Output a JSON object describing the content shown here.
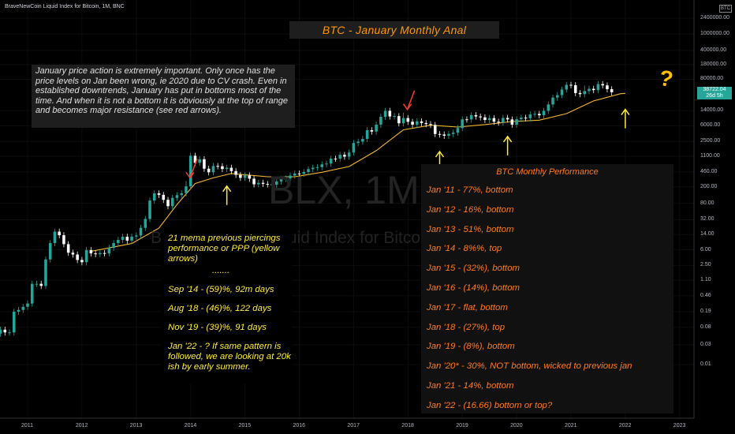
{
  "symbol_line": "BraveNewCoin Liquid Index for Bitcoin, 1M, BNC",
  "title": "BTC - January Monthly Anal",
  "note": "January price action is extremely important. Only once has the price levels on Jan been wrong, ie 2020 due to CV crash. Even in established downtrends, January has put in bottoms most of the time. And when it is not a bottom it is obviously at the top of range and becomes major resistance (see red arrows).",
  "watermark": {
    "big": "BLX, 1M",
    "small": "BraveNewCoin Liquid Index for Bitcoin"
  },
  "ppp": {
    "heading": "21 mema previous piercings performance or PPP (yellow arrows)",
    "dots": ".......",
    "items": [
      "Sep '14 - (59)%, 92m days",
      "Aug '18 - (46)%, 122 days",
      "Nov '19 - (39)%, 91 days"
    ],
    "closing": "Jan '22 - ? If same pattern is followed, we are looking at 20k ish by early summer."
  },
  "performance": {
    "title": "BTC Monthly Performance",
    "items": [
      "Jan '11 - 77%, bottom",
      "Jan '12 - 16%, bottom",
      "Jan '13 - 51%, bottom",
      "Jan '14 - 8%%, top",
      "Jan '15 - (32%), bottom",
      "Jan '16 - (14%), bottom",
      "Jan '17 - flat, bottom",
      "Jan '18 - (27%), top",
      "Jan '19 - (8%), bottom",
      "Jan '20* - 30%, NOT bottom, wicked to previous jan",
      "Jan '21 - 14%, bottom",
      "Jan '22 - (16.66) bottom or top?"
    ]
  },
  "question_mark": "?",
  "price_badge": {
    "currency": "BTC",
    "price": "38722.04",
    "countdown": "26d 5h"
  },
  "colors": {
    "up": "#26a69a",
    "down": "#ffffff",
    "ema": "#f5b82e",
    "title": "#ff9800",
    "perf_text": "#ff7a1a",
    "ppp_text": "#ffeb3b",
    "red_arrow": "#ff3b30",
    "yellow_arrow": "#ffeb3b"
  },
  "chart_data": {
    "type": "candlestick",
    "title": "BTC - January Monthly Anal",
    "y_scale": "log",
    "y_ticks": [
      "2400000.00",
      "1000000.00",
      "400000.00",
      "180000.00",
      "80000.00",
      "38722.04",
      "14000.00",
      "6000.00",
      "2500.00",
      "1100.00",
      "460.00",
      "200.00",
      "80.00",
      "32.00",
      "14.00",
      "6.00",
      "2.50",
      "1.10",
      "0.46",
      "0.19",
      "0.08",
      "0.03",
      "0.01"
    ],
    "x_ticks": [
      "2011",
      "2012",
      "2013",
      "2014",
      "2015",
      "2016",
      "2017",
      "2018",
      "2019",
      "2020",
      "2021",
      "2022",
      "2023"
    ],
    "series": [
      {
        "name": "BLX",
        "kind": "candles",
        "start": "2010-07",
        "close": [
          0.07,
          0.06,
          0.06,
          0.19,
          0.21,
          0.25,
          0.3,
          0.9,
          0.9,
          0.8,
          3.5,
          8.7,
          16.5,
          13.5,
          8.2,
          5.1,
          4.6,
          3.4,
          3,
          5.9,
          4.9,
          4.7,
          5,
          4.9,
          6.7,
          8.7,
          10.4,
          12.4,
          10,
          12.5,
          13.3,
          20.4,
          33.4,
          93,
          139,
          128,
          97,
          68,
          108,
          126,
          140,
          205,
          1130,
          760,
          930,
          550,
          450,
          640,
          630,
          540,
          580,
          480,
          390,
          330,
          380,
          315,
          230,
          250,
          235,
          230,
          225,
          270,
          310,
          320,
          375,
          420,
          415,
          455,
          536,
          580,
          600,
          700,
          730,
          965,
          960,
          1190,
          1075,
          1350,
          2300,
          2480,
          2880,
          4700,
          4350,
          6400,
          9900,
          13800,
          10100,
          10300,
          6900,
          9240,
          7500,
          6400,
          7700,
          7000,
          6600,
          6300,
          3800,
          3700,
          3450,
          3800,
          4100,
          5300,
          8600,
          8550,
          10850,
          10100,
          9600,
          8300,
          9200,
          7550,
          7200,
          9300,
          8550,
          6400,
          8650,
          9450,
          9140,
          11330,
          11650,
          10780,
          13800,
          19700,
          28900,
          33100,
          45200,
          58800,
          57700,
          37300,
          35000,
          41500,
          47100,
          43800,
          61300,
          57000,
          46200,
          38722
        ],
        "wick_spikes_at": [
          "2013-12",
          "2017-12",
          "2021-04",
          "2021-11"
        ]
      },
      {
        "name": "21 EMA (monthly)",
        "kind": "line",
        "points": [
          [
            "2012-03",
            5.5
          ],
          [
            "2012-12",
            8.5
          ],
          [
            "2013-06",
            20
          ],
          [
            "2013-10",
            75
          ],
          [
            "2014-02",
            240
          ],
          [
            "2014-06",
            330
          ],
          [
            "2014-10",
            420
          ],
          [
            "2015-06",
            350
          ],
          [
            "2015-12",
            350
          ],
          [
            "2016-06",
            450
          ],
          [
            "2016-12",
            620
          ],
          [
            "2017-06",
            1500
          ],
          [
            "2017-12",
            4800
          ],
          [
            "2018-06",
            6200
          ],
          [
            "2018-12",
            5600
          ],
          [
            "2019-06",
            6400
          ],
          [
            "2019-12",
            7600
          ],
          [
            "2020-06",
            8200
          ],
          [
            "2020-12",
            11800
          ],
          [
            "2021-06",
            24000
          ],
          [
            "2021-12",
            36000
          ],
          [
            "2022-01",
            36500
          ]
        ]
      }
    ],
    "annotations": {
      "red_arrows": [
        "2013-12",
        "2017-12"
      ],
      "yellow_arrows": [
        "2014-09",
        "2018-08",
        "2019-11",
        "2022-01"
      ]
    }
  }
}
